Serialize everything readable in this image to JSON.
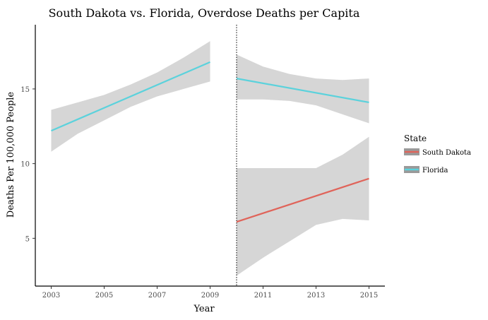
{
  "chart_data": {
    "type": "line",
    "title": "South Dakota vs. Florida, Overdose Deaths per Capita",
    "xlabel": "Year",
    "ylabel": "Deaths Per 100,000 People",
    "xlim": [
      2002.4,
      2015.6
    ],
    "ylim": [
      1.8,
      19.3
    ],
    "x_ticks": [
      2003,
      2005,
      2007,
      2009,
      2011,
      2013,
      2015
    ],
    "y_ticks": [
      5,
      10,
      15
    ],
    "vline": {
      "x": 2010,
      "style": "dotted"
    },
    "legend": {
      "title": "State",
      "position": "right"
    },
    "series": [
      {
        "name": "South Dakota",
        "color": "#e0645a",
        "segments": [
          {
            "x": [
              2010,
              2015
            ],
            "y": [
              6.1,
              9.0
            ],
            "ci_x": [
              2010,
              2011,
              2012,
              2013,
              2014,
              2015
            ],
            "ci_upper": [
              9.7,
              9.7,
              9.7,
              9.7,
              10.6,
              11.8
            ],
            "ci_lower": [
              2.5,
              3.7,
              4.8,
              5.9,
              6.3,
              6.2
            ]
          }
        ]
      },
      {
        "name": "Florida",
        "color": "#5bd2dc",
        "segments": [
          {
            "x": [
              2003,
              2009
            ],
            "y": [
              12.2,
              16.8
            ],
            "ci_x": [
              2003,
              2004,
              2005,
              2006,
              2007,
              2008,
              2009
            ],
            "ci_upper": [
              13.6,
              14.1,
              14.6,
              15.3,
              16.1,
              17.1,
              18.2
            ],
            "ci_lower": [
              10.8,
              12.0,
              12.9,
              13.8,
              14.5,
              15.0,
              15.5
            ]
          },
          {
            "x": [
              2010,
              2015
            ],
            "y": [
              15.7,
              14.1
            ],
            "ci_x": [
              2010,
              2011,
              2012,
              2013,
              2014,
              2015
            ],
            "ci_upper": [
              17.3,
              16.5,
              16.0,
              15.7,
              15.6,
              15.7
            ],
            "ci_lower": [
              14.3,
              14.3,
              14.2,
              13.9,
              13.3,
              12.7
            ]
          }
        ]
      }
    ]
  }
}
